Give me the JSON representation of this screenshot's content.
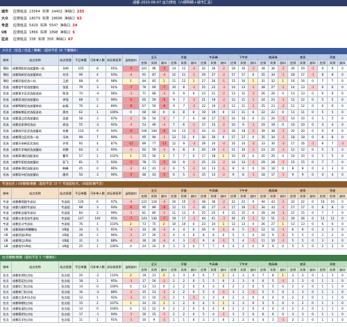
{
  "title": "成都-2020-08-07 运力排班（六细明细＋城市汇总）",
  "summary": [
    {
      "label": "城市",
      "items": [
        {
          "k": "应排班总",
          "v": 23564
        },
        {
          "k": "实排",
          "v": 24402
        },
        {
          "k": "净缺口",
          "v": 235
        }
      ]
    },
    {
      "label": "大众",
      "items": [
        {
          "k": "应排班总",
          "v": 18079
        },
        {
          "k": "实排",
          "v": 18696
        },
        {
          "k": "净缺口",
          "v": 63
        }
      ]
    },
    {
      "label": "专送",
      "items": [
        {
          "k": "应排班总",
          "v": 5429
        },
        {
          "k": "实排",
          "v": 5547
        },
        {
          "k": "净缺口",
          "v": 24
        }
      ]
    },
    {
      "label": "UB",
      "items": [
        {
          "k": "应排班总",
          "v": 1866
        },
        {
          "k": "实排",
          "v": 1898
        },
        {
          "k": "净缺口",
          "v": 6
        }
      ]
    },
    {
      "label": "拉点",
      "items": [
        {
          "k": "应排班总",
          "v": 338
        },
        {
          "k": "实排",
          "v": 358
        },
        {
          "k": "净缺口",
          "v": 67
        }
      ]
    }
  ],
  "columns": [
    "城市",
    "站点名称",
    "站点经理",
    "平日单量",
    "可补单人数",
    "实际排班率",
    "当前缺口"
  ],
  "slots": [
    "全天",
    "早餐",
    "午高峰",
    "下午茶",
    "晚高峰",
    "夜宵",
    "宵夜"
  ],
  "sub": [
    "应排",
    "实排",
    "缺口"
  ],
  "sections": [
    {
      "title": "大众仓（优选 / 优选 / 懒懒）（超标不足 30 个懒懒补）",
      "rows": [
        [
          "锦阳",
          "成都锦阳优选加盟商一站",
          "孙明",
          105,
          8,
          "95%",
          -5,
          101,
          96,
          -5,
          14,
          12,
          -2,
          32,
          30,
          -2,
          18,
          16,
          -2,
          38,
          36,
          -2,
          20,
          19,
          -1,
          9,
          9,
          0
        ],
        [
          "锦阳",
          "成都高新优选加盟商站",
          "刘洋",
          96,
          4,
          "93%",
          -4,
          91,
          87,
          -4,
          12,
          11,
          -1,
          29,
          27,
          -2,
          17,
          17,
          0,
          35,
          34,
          -1,
          18,
          17,
          -1,
          8,
          8,
          0
        ],
        [
          "锦阳",
          "成都武侯优选二站",
          "王超",
          88,
          6,
          "98%",
          1,
          84,
          85,
          1,
          11,
          12,
          1,
          27,
          26,
          -1,
          15,
          16,
          1,
          31,
          32,
          1,
          16,
          16,
          0,
          7,
          7,
          0
        ],
        [
          "优选",
          "成都金牛优选加盟站",
          "张凯",
          79,
          3,
          "91%",
          -7,
          76,
          69,
          -7,
          10,
          8,
          -2,
          25,
          22,
          -3,
          14,
          13,
          -1,
          28,
          27,
          -1,
          14,
          13,
          -1,
          6,
          6,
          0
        ],
        [
          "优选",
          "成都青羊区优选配送站",
          "陈涛",
          74,
          -4,
          "96%",
          -3,
          71,
          68,
          -3,
          9,
          9,
          0,
          23,
          21,
          -2,
          13,
          12,
          -1,
          26,
          26,
          0,
          13,
          13,
          0,
          6,
          6,
          0
        ],
        [
          "优选",
          "成都双流优选加盟站",
          "李强",
          68,
          5,
          "90%",
          -6,
          65,
          59,
          -6,
          9,
          7,
          -2,
          21,
          19,
          -2,
          12,
          11,
          -1,
          24,
          23,
          -1,
          12,
          12,
          0,
          5,
          5,
          0
        ],
        [
          "优选",
          "成都郫都优选加盟商站",
          "赵磊",
          70,
          2,
          "89%",
          -8,
          67,
          59,
          -8,
          9,
          7,
          -2,
          22,
          19,
          -3,
          12,
          11,
          -1,
          25,
          23,
          -2,
          12,
          12,
          0,
          6,
          6,
          0
        ],
        [
          "优选",
          "成都新都区优选配送站",
          "周杰",
          62,
          1,
          "100%",
          0,
          60,
          60,
          0,
          8,
          8,
          0,
          19,
          19,
          0,
          11,
          11,
          0,
          22,
          22,
          0,
          11,
          11,
          0,
          5,
          5,
          0
        ],
        [
          "优选",
          "成都温江优选加盟站",
          "吴斌",
          58,
          3,
          "97%",
          -2,
          56,
          54,
          -2,
          7,
          7,
          0,
          18,
          17,
          -1,
          10,
          10,
          0,
          21,
          20,
          -1,
          10,
          10,
          0,
          5,
          5,
          0
        ],
        [
          "优选",
          "成都龙泉驿优选站",
          "郑浩",
          55,
          -2,
          "92%",
          -4,
          53,
          49,
          -4,
          7,
          6,
          -1,
          17,
          15,
          -2,
          10,
          9,
          -1,
          19,
          19,
          0,
          10,
          10,
          0,
          4,
          4,
          0
        ],
        [
          "优选",
          "成都成华区优选加盟站",
          "何勇",
          110,
          9,
          "94%",
          -6,
          106,
          100,
          -6,
          14,
          13,
          -1,
          34,
          31,
          -3,
          19,
          18,
          -1,
          39,
          38,
          -1,
          20,
          20,
          0,
          9,
          9,
          0
        ],
        [
          "优选",
          "成都锦江区优选一站",
          "冯伟",
          99,
          7,
          "99%",
          -1,
          95,
          94,
          -1,
          13,
          13,
          0,
          30,
          30,
          0,
          17,
          17,
          0,
          35,
          34,
          -1,
          18,
          18,
          0,
          8,
          8,
          0
        ],
        [
          "优选",
          "成都天府新区优选站",
          "许亮",
          92,
          4,
          "87%",
          -12,
          89,
          77,
          -12,
          12,
          9,
          -3,
          28,
          24,
          -4,
          16,
          14,
          -2,
          33,
          30,
          -3,
          17,
          16,
          -1,
          8,
          7,
          -1
        ],
        [
          "优选",
          "成都大学城优选加盟站",
          "邓鹏",
          64,
          2,
          "95%",
          -3,
          62,
          59,
          -3,
          8,
          8,
          0,
          20,
          19,
          -1,
          11,
          10,
          -1,
          23,
          22,
          -1,
          12,
          12,
          0,
          5,
          5,
          0
        ],
        [
          "优选",
          "成都犀浦优选配送站",
          "曹军",
          57,
          1,
          "102%",
          1,
          55,
          56,
          1,
          7,
          7,
          0,
          17,
          18,
          1,
          10,
          10,
          0,
          20,
          20,
          0,
          10,
          10,
          0,
          5,
          5,
          0
        ],
        [
          "优选",
          "成都华阳优选加盟站",
          "彭飞",
          81,
          5,
          "93%",
          -5,
          78,
          73,
          -5,
          10,
          9,
          -1,
          25,
          23,
          -2,
          14,
          13,
          -1,
          29,
          28,
          -1,
          15,
          15,
          0,
          7,
          7,
          0
        ],
        [
          "优选",
          "成都新津优选配送站",
          "韩峰",
          45,
          0,
          "96%",
          -2,
          43,
          41,
          -2,
          6,
          5,
          -1,
          14,
          13,
          -1,
          8,
          8,
          0,
          16,
          16,
          0,
          8,
          8,
          0,
          3,
          3,
          0
        ],
        [
          "优选",
          "成都彭州优选加盟站",
          "唐亮",
          50,
          3,
          "90%",
          -5,
          48,
          43,
          -5,
          6,
          5,
          -1,
          15,
          13,
          -2,
          9,
          8,
          -1,
          18,
          17,
          -1,
          9,
          9,
          0,
          4,
          4,
          0
        ]
      ]
    },
    {
      "title": "专送站点 / UB懒懒/懒懒（超标不足 10 个 专送超标点，UB超标懒不足）",
      "rows": [
        [
          "专送",
          "成都春熙路专送站",
          "专送组",
          126,
          6,
          "97%",
          -4,
          122,
          118,
          -4,
          16,
          15,
          -1,
          38,
          36,
          -2,
          22,
          22,
          0,
          44,
          43,
          -1,
          22,
          22,
          0,
          10,
          10,
          0
        ],
        [
          "专送",
          "成都九眼桥专送站",
          "专送组",
          98,
          3,
          "94%",
          -6,
          95,
          89,
          -6,
          12,
          11,
          -1,
          30,
          27,
          -3,
          17,
          16,
          -1,
          34,
          33,
          -1,
          17,
          17,
          0,
          8,
          8,
          0
        ],
        [
          "专送",
          "成都新会展专送站",
          "专送组",
          84,
          2,
          "99%",
          -1,
          81,
          80,
          -1,
          11,
          11,
          0,
          25,
          25,
          0,
          15,
          15,
          0,
          29,
          28,
          -1,
          15,
          15,
          0,
          7,
          7,
          0
        ],
        [
          "专送",
          "成都火车北站专送站",
          "专送组",
          147,
          140,
          "95%",
          -7,
          143,
          136,
          -7,
          19,
          17,
          -2,
          44,
          41,
          -3,
          26,
          25,
          -1,
          52,
          51,
          -1,
          26,
          26,
          0,
          12,
          12,
          0
        ],
        [
          "专送",
          "成都金沙专送站",
          "专送组",
          76,
          1,
          "103%",
          2,
          73,
          75,
          2,
          10,
          10,
          0,
          23,
          24,
          1,
          13,
          13,
          0,
          26,
          27,
          1,
          13,
          13,
          0,
          6,
          6,
          0
        ],
        [
          "UB",
          "成都高新UB懒懒站",
          "UB组",
          34,
          5,
          "91%",
          -3,
          33,
          30,
          -3,
          4,
          4,
          0,
          10,
          9,
          -1,
          6,
          5,
          -1,
          12,
          11,
          -1,
          6,
          6,
          0,
          3,
          3,
          0
        ],
        [
          "UB",
          "成都武侯UB站",
          "UB组",
          28,
          2,
          "96%",
          -1,
          27,
          26,
          -1,
          4,
          4,
          0,
          8,
          8,
          0,
          5,
          5,
          0,
          10,
          9,
          -1,
          5,
          5,
          0,
          2,
          2,
          0
        ],
        [
          "UB",
          "成都锦江UB站",
          "UB组",
          31,
          3,
          "88%",
          -4,
          30,
          26,
          -4,
          4,
          3,
          -1,
          9,
          8,
          -1,
          5,
          4,
          -1,
          11,
          10,
          -1,
          5,
          5,
          0,
          3,
          3,
          0
        ],
        [
          "UB",
          "成都成华UB站",
          "UB组",
          25,
          1,
          "100%",
          0,
          24,
          24,
          0,
          3,
          3,
          0,
          7,
          7,
          0,
          4,
          4,
          0,
          9,
          9,
          0,
          5,
          5,
          0,
          2,
          2,
          0
        ]
      ]
    },
    {
      "title": "拉点懒懒/懒懒（超标不足 5 个懒懒补）",
      "rows": [
        [
          "拉点",
          "成都东郊拉点站",
          "拉点组",
          20,
          -2,
          "110%",
          2,
          19,
          21,
          2,
          3,
          3,
          0,
          6,
          7,
          1,
          3,
          3,
          0,
          7,
          8,
          1,
          3,
          3,
          0,
          1,
          1,
          0
        ],
        [
          "拉点",
          "成都西区拉点站",
          "拉点组",
          18,
          1,
          "95%",
          -1,
          17,
          16,
          -1,
          2,
          2,
          0,
          5,
          5,
          0,
          3,
          3,
          0,
          6,
          5,
          -1,
          3,
          3,
          0,
          1,
          1,
          0
        ],
        [
          "拉点",
          "成都北门拉点站",
          "拉点组",
          14,
          0,
          "100%",
          0,
          13,
          13,
          0,
          2,
          2,
          0,
          4,
          4,
          0,
          2,
          2,
          0,
          5,
          5,
          0,
          2,
          2,
          0,
          1,
          1,
          0
        ],
        [
          "拉点",
          "成都南门拉点站",
          "拉点组",
          16,
          -3,
          "88%",
          -2,
          15,
          13,
          -2,
          2,
          2,
          0,
          5,
          4,
          -1,
          3,
          2,
          -1,
          5,
          5,
          0,
          3,
          3,
          0,
          1,
          1,
          0
        ],
        [
          "拉点",
          "成都三圣乡拉点站",
          "拉点组",
          12,
          1,
          "92%",
          -1,
          11,
          10,
          -1,
          2,
          1,
          -1,
          3,
          3,
          0,
          2,
          2,
          0,
          4,
          4,
          0,
          2,
          2,
          0,
          1,
          1,
          0
        ],
        [
          "拉点",
          "成都驿都拉点站",
          "拉点组",
          15,
          2,
          "107%",
          1,
          14,
          15,
          1,
          2,
          2,
          0,
          4,
          5,
          1,
          3,
          3,
          0,
          5,
          5,
          0,
          2,
          2,
          0,
          1,
          1,
          0
        ],
        [
          "拉点",
          "成都桂溪拉点站",
          "拉点组",
          13,
          0,
          "100%",
          0,
          12,
          12,
          0,
          2,
          2,
          0,
          4,
          4,
          0,
          2,
          2,
          0,
          4,
          4,
          0,
          2,
          2,
          0,
          1,
          1,
          0
        ],
        [
          "拉点",
          "成都簇桥拉点站",
          "拉点组",
          17,
          -1,
          "94%",
          -1,
          16,
          15,
          -1,
          2,
          2,
          0,
          5,
          4,
          -1,
          3,
          3,
          0,
          6,
          6,
          0,
          3,
          3,
          0,
          1,
          1,
          0
        ],
        [
          "拉点",
          "成都石羊拉点站",
          "拉点组",
          11,
          1,
          "91%",
          -1,
          10,
          9,
          -1,
          1,
          1,
          0,
          3,
          3,
          0,
          2,
          2,
          0,
          4,
          3,
          -1,
          2,
          2,
          0,
          1,
          1,
          0
        ]
      ]
    }
  ]
}
